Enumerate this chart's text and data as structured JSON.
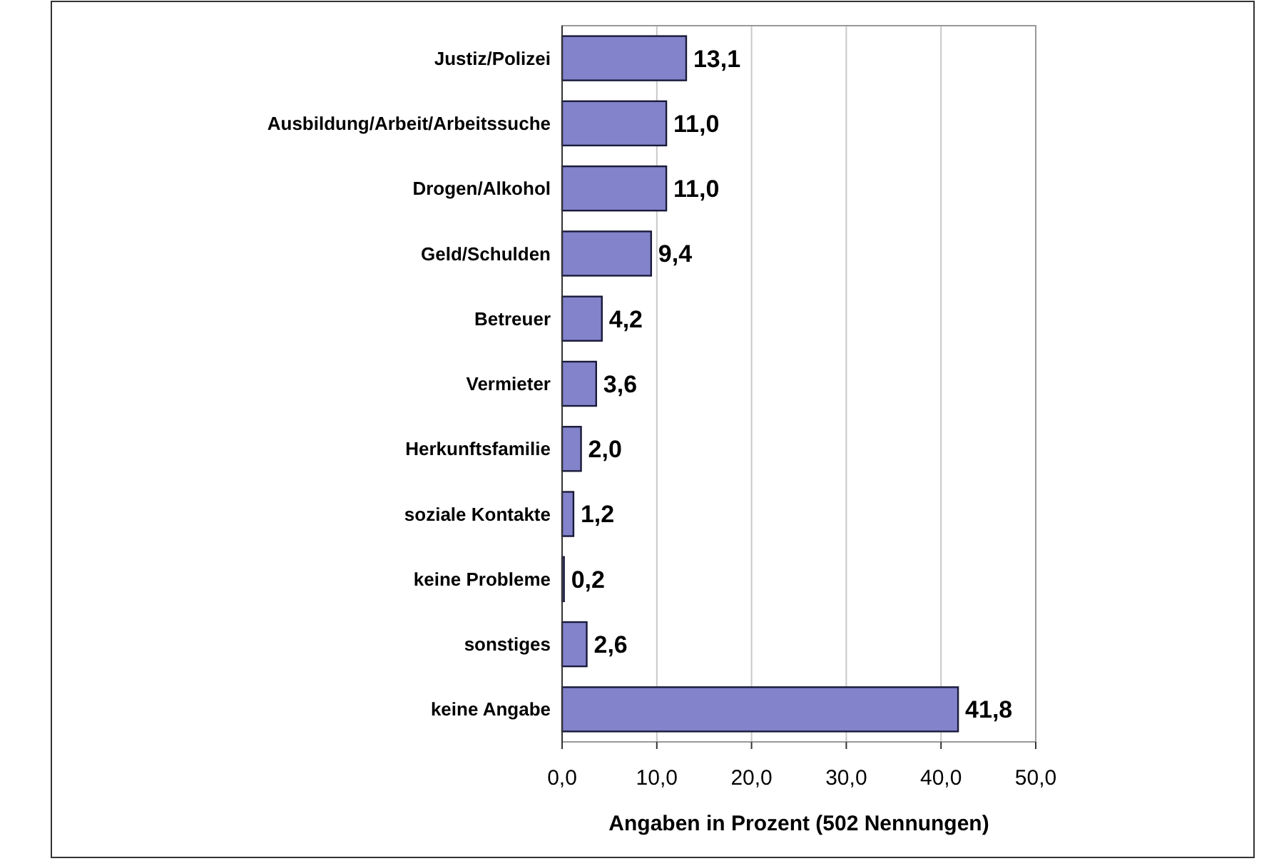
{
  "chart_data": {
    "type": "bar",
    "orientation": "horizontal",
    "xlabel": "Angaben in Prozent (502 Nennungen)",
    "categories": [
      "Justiz/Polizei",
      "Ausbildung/Arbeit/Arbeitssuche",
      "Drogen/Alkohol",
      "Geld/Schulden",
      "Betreuer",
      "Vermieter",
      "Herkunftsfamilie",
      "soziale Kontakte",
      "keine Probleme",
      "sonstiges",
      "keine Angabe"
    ],
    "values": [
      13.1,
      11.0,
      11.0,
      9.4,
      4.2,
      3.6,
      2.0,
      1.2,
      0.2,
      2.6,
      41.8
    ],
    "value_labels": [
      "13,1",
      "11,0",
      "11,0",
      "9,4",
      "4,2",
      "3,6",
      "2,0",
      "1,2",
      "0,2",
      "2,6",
      "41,8"
    ],
    "color": "#8383cc",
    "xlim": [
      0,
      50
    ],
    "xticks": [
      {
        "value": 0,
        "label": "0,0"
      },
      {
        "value": 10,
        "label": "10,0"
      },
      {
        "value": 20,
        "label": "20,0"
      },
      {
        "value": 30,
        "label": "30,0"
      },
      {
        "value": 40,
        "label": "40,0"
      },
      {
        "value": 50,
        "label": "50,0"
      }
    ],
    "grid": "x"
  }
}
